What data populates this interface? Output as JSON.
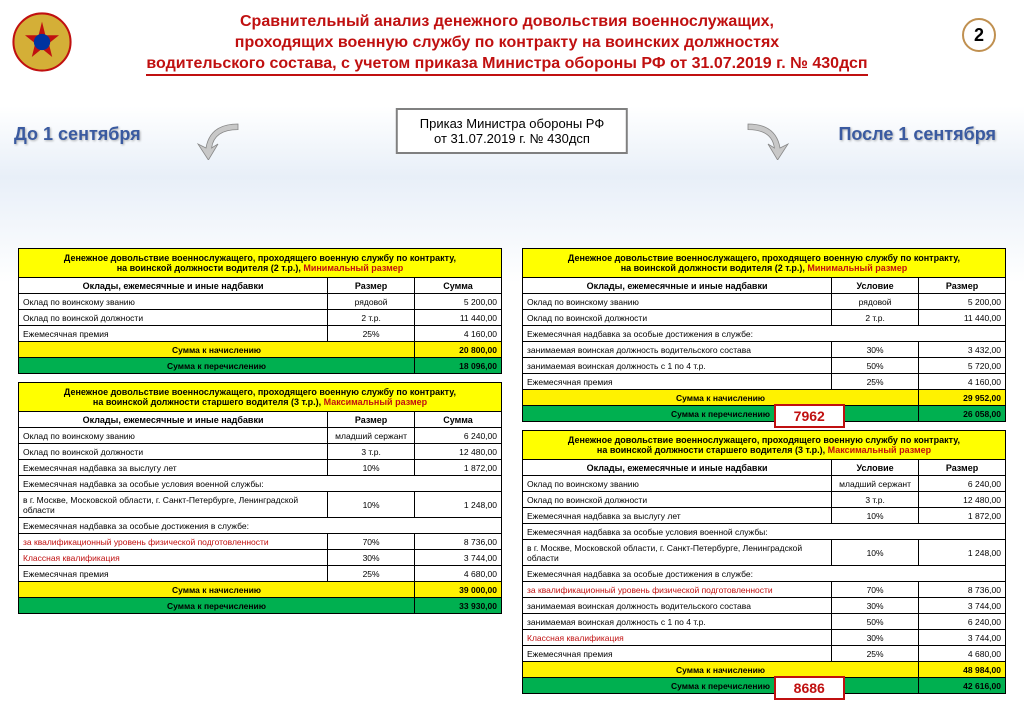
{
  "page_number": "2",
  "title_l1": "Сравнительный анализ денежного довольствия военнослужащих,",
  "title_l2": "проходящих военную службу по контракту на воинских должностях",
  "title_l3": "водительского состава, с учетом приказа Министра обороны РФ от 31.07.2019 г. № 430дсп",
  "center_l1": "Приказ Министра обороны РФ",
  "center_l2": "от 31.07.2019 г. № 430дсп",
  "before": "До 1 сентября",
  "after": "После 1 сентября",
  "hdr_col_name": "Оклады, ежемесячные и иные надбавки",
  "hdr_col_size": "Размер",
  "hdr_col_sum": "Сумма",
  "hdr_col_cond": "Условие",
  "sum_accr": "Сумма к начислению",
  "sum_trans": "Сумма к перечислению",
  "tL1": {
    "title_pre": "Денежное довольствие военнослужащего, проходящего военную службу по контракту,",
    "title_line2_a": "на воинской должности ",
    "title_bold": "водителя",
    "title_line2_b": " (2 т.р.), ",
    "title_red": "Минимальный размер",
    "rows": [
      {
        "n": "Оклад по воинскому званию",
        "r": "рядовой",
        "s": "5 200,00"
      },
      {
        "n": "Оклад по воинской должности",
        "r": "2 т.р.",
        "s": "11 440,00"
      },
      {
        "n": "Ежемесячная премия",
        "r": "25%",
        "s": "4 160,00"
      }
    ],
    "tot1": "20 800,00",
    "tot2": "18 096,00"
  },
  "tL2": {
    "title_pre": "Денежное довольствие военнослужащего, проходящего военную службу по контракту,",
    "title_line2_a": "на воинской должности ",
    "title_bold": "старшего водителя",
    "title_line2_b": " (3 т.р.), ",
    "title_red": "Максимальный размер",
    "rows": [
      {
        "n": "Оклад по воинскому званию",
        "r": "младший сержант",
        "s": "6 240,00"
      },
      {
        "n": "Оклад по воинской должности",
        "r": "3 т.р.",
        "s": "12 480,00"
      },
      {
        "n": "Ежемесячная надбавка за выслугу лет",
        "r": "10%",
        "s": "1 872,00"
      },
      {
        "n": "Ежемесячная надбавка за особые условия военной службы:",
        "r": "",
        "s": ""
      },
      {
        "n": "  в г. Москве, Московской области, г. Санкт-Петербурге, Ленинградской области",
        "r": "10%",
        "s": "1 248,00"
      },
      {
        "n": "Ежемесячная надбавка за особые достижения в службе:",
        "r": "",
        "s": ""
      },
      {
        "n": "  за квалификационный уровень физической подготовленности",
        "r": "70%",
        "s": "8 736,00",
        "red": true
      },
      {
        "n": "Классная квалификация",
        "r": "30%",
        "s": "3 744,00",
        "red": true
      },
      {
        "n": "Ежемесячная премия",
        "r": "25%",
        "s": "4 680,00"
      }
    ],
    "tot1": "39 000,00",
    "tot2": "33 930,00"
  },
  "tR1": {
    "title_pre": "Денежное довольствие военнослужащего, проходящего военную службу по контракту,",
    "title_line2_a": "на воинской должности ",
    "title_bold": "водителя",
    "title_line2_b": " (2 т.р.), ",
    "title_red": "Минимальный размер",
    "rows": [
      {
        "n": "Оклад по воинскому званию",
        "r": "рядовой",
        "s": "5 200,00"
      },
      {
        "n": "Оклад по воинской должности",
        "r": "2 т.р.",
        "s": "11 440,00"
      },
      {
        "n": "Ежемесячная надбавка за особые достижения в службе:",
        "r": "",
        "s": ""
      },
      {
        "n": "  занимаемая воинская должность водительского состава",
        "r": "30%",
        "s": "3 432,00"
      },
      {
        "n": "  занимаемая воинская должность с 1 по 4 т.р.",
        "r": "50%",
        "s": "5 720,00"
      },
      {
        "n": "Ежемесячная премия",
        "r": "25%",
        "s": "4 160,00"
      }
    ],
    "tot1": "29 952,00",
    "tot2": "26 058,00",
    "callout": "7962"
  },
  "tR2": {
    "title_pre": "Денежное довольствие военнослужащего, проходящего военную службу по контракту,",
    "title_line2_a": "на воинской должности ",
    "title_bold": "старшего водителя",
    "title_line2_b": " (3 т.р.), ",
    "title_red": "Максимальный размер",
    "rows": [
      {
        "n": "Оклад по воинскому званию",
        "r": "младший сержант",
        "s": "6 240,00"
      },
      {
        "n": "Оклад по воинской должности",
        "r": "3 т.р.",
        "s": "12 480,00"
      },
      {
        "n": "Ежемесячная надбавка за выслугу лет",
        "r": "10%",
        "s": "1 872,00"
      },
      {
        "n": "Ежемесячная надбавка за особые условия военной службы:",
        "r": "",
        "s": ""
      },
      {
        "n": "  в г. Москве, Московской области, г. Санкт-Петербурге, Ленинградской области",
        "r": "10%",
        "s": "1 248,00"
      },
      {
        "n": "Ежемесячная надбавка за особые достижения в службе:",
        "r": "",
        "s": ""
      },
      {
        "n": "  за квалификационный уровень физической подготовленности",
        "r": "70%",
        "s": "8 736,00",
        "red": true
      },
      {
        "n": "  занимаемая воинская должность водительского состава",
        "r": "30%",
        "s": "3 744,00"
      },
      {
        "n": "  занимаемая воинская должность с 1 по 4 т.р.",
        "r": "50%",
        "s": "6 240,00"
      },
      {
        "n": "Классная квалификация",
        "r": "30%",
        "s": "3 744,00",
        "red": true
      },
      {
        "n": "Ежемесячная премия",
        "r": "25%",
        "s": "4 680,00"
      }
    ],
    "tot1": "48 984,00",
    "tot2": "42 616,00",
    "callout": "8686"
  }
}
